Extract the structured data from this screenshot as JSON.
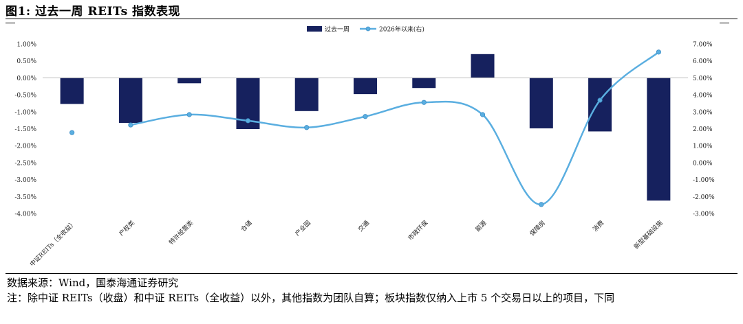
{
  "figure": {
    "title": "图1:  过去一周 REITs 指数表现"
  },
  "chart_data": {
    "type": "bar",
    "categories": [
      "中证REITs（全收益）",
      "产权类",
      "特许经营类",
      "仓储",
      "产业园",
      "交通",
      "市政环保",
      "能源",
      "保障房",
      "消费",
      "新型基础设施"
    ],
    "series": [
      {
        "name": "过去一周",
        "type": "bar",
        "axis": "left",
        "color": "#16215e",
        "values": [
          -0.77,
          -1.33,
          -0.16,
          -1.51,
          -0.98,
          -0.48,
          -0.3,
          0.7,
          -1.49,
          -1.58,
          -3.62
        ]
      },
      {
        "name": "2026年以来(右)",
        "type": "line",
        "axis": "right",
        "color": "#5aaee0",
        "values": [
          1.77,
          2.22,
          2.83,
          2.47,
          2.07,
          2.72,
          3.55,
          2.83,
          -2.47,
          3.68,
          6.52
        ]
      }
    ],
    "y_left": {
      "min": -4.0,
      "max": 1.0,
      "step": 0.5,
      "ticks": [
        "1.00%",
        "0.50%",
        "0.00%",
        "-0.50%",
        "-1.00%",
        "-1.50%",
        "-2.00%",
        "-2.50%",
        "-3.00%",
        "-3.50%",
        "-4.00%"
      ]
    },
    "y_right": {
      "min": -3.0,
      "max": 7.0,
      "step": 1.0,
      "ticks": [
        "7.00%",
        "6.00%",
        "5.00%",
        "4.00%",
        "3.00%",
        "2.00%",
        "1.00%",
        "0.00%",
        "-1.00%",
        "-2.00%",
        "-3.00%"
      ]
    },
    "legend_position": "top-center",
    "grid": false
  },
  "notes": {
    "source": "数据来源：Wind，国泰海通证券研究",
    "footnote": "注：除中证 REITs（收盘）和中证 REITs（全收益）以外，其他指数为团队自算；板块指数仅纳入上市 5 个交易日以上的项目，下同"
  }
}
